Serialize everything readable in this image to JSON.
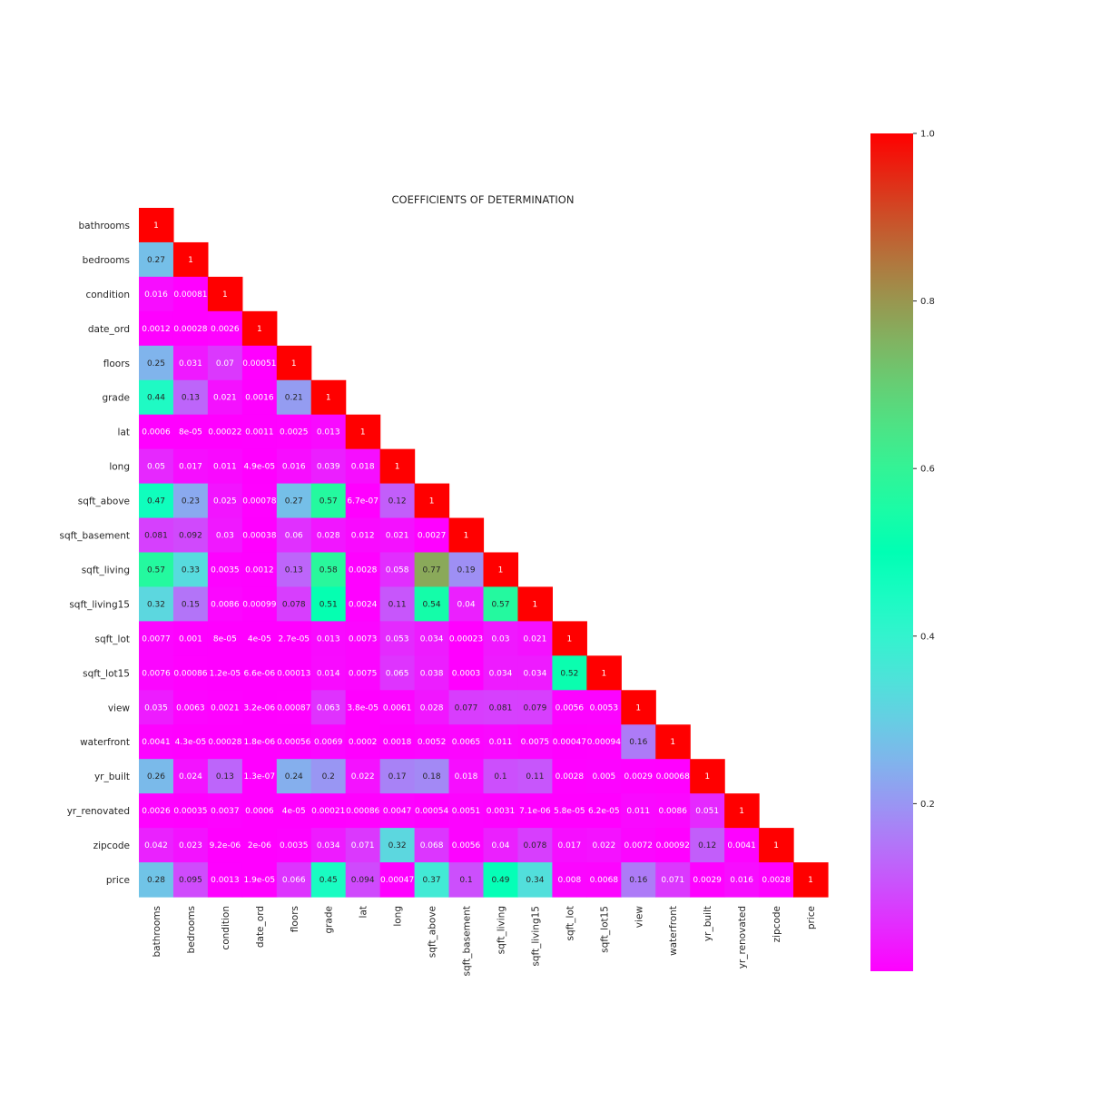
{
  "chart_data": {
    "type": "heatmap",
    "title": "COEFFICIENTS OF DETERMINATION",
    "colormap": "rainbow",
    "mask": "lower-triangle",
    "variables": [
      "bathrooms",
      "bedrooms",
      "condition",
      "date_ord",
      "floors",
      "grade",
      "lat",
      "long",
      "sqft_above",
      "sqft_basement",
      "sqft_living",
      "sqft_living15",
      "sqft_lot",
      "sqft_lot15",
      "view",
      "waterfront",
      "yr_built",
      "yr_renovated",
      "zipcode",
      "price"
    ],
    "rows": [
      [
        "1"
      ],
      [
        "0.27",
        "1"
      ],
      [
        "0.016",
        "0.00081",
        "1"
      ],
      [
        "0.0012",
        "0.00028",
        "0.0026",
        "1"
      ],
      [
        "0.25",
        "0.031",
        "0.07",
        "0.00051",
        "1"
      ],
      [
        "0.44",
        "0.13",
        "0.021",
        "0.0016",
        "0.21",
        "1"
      ],
      [
        "0.0006",
        "8e-05",
        "0.00022",
        "0.0011",
        "0.0025",
        "0.013",
        "1"
      ],
      [
        "0.05",
        "0.017",
        "0.011",
        "4.9e-05",
        "0.016",
        "0.039",
        "0.018",
        "1"
      ],
      [
        "0.47",
        "0.23",
        "0.025",
        "0.00078",
        "0.27",
        "0.57",
        "6.7e-07",
        "0.12",
        "1"
      ],
      [
        "0.081",
        "0.092",
        "0.03",
        "0.00038",
        "0.06",
        "0.028",
        "0.012",
        "0.021",
        "0.0027",
        "1"
      ],
      [
        "0.57",
        "0.33",
        "0.0035",
        "0.0012",
        "0.13",
        "0.58",
        "0.0028",
        "0.058",
        "0.77",
        "0.19",
        "1"
      ],
      [
        "0.32",
        "0.15",
        "0.0086",
        "0.00099",
        "0.078",
        "0.51",
        "0.0024",
        "0.11",
        "0.54",
        "0.04",
        "0.57",
        "1"
      ],
      [
        "0.0077",
        "0.001",
        "8e-05",
        "4e-05",
        "2.7e-05",
        "0.013",
        "0.0073",
        "0.053",
        "0.034",
        "0.00023",
        "0.03",
        "0.021",
        "1"
      ],
      [
        "0.0076",
        "0.00086",
        "1.2e-05",
        "6.6e-06",
        "0.00013",
        "0.014",
        "0.0075",
        "0.065",
        "0.038",
        "0.0003",
        "0.034",
        "0.034",
        "0.52",
        "1"
      ],
      [
        "0.035",
        "0.0063",
        "0.0021",
        "3.2e-06",
        "0.00087",
        "0.063",
        "3.8e-05",
        "0.0061",
        "0.028",
        "0.077",
        "0.081",
        "0.079",
        "0.0056",
        "0.0053",
        "1"
      ],
      [
        "0.0041",
        "4.3e-05",
        "0.00028",
        "1.8e-06",
        "0.00056",
        "0.0069",
        "0.0002",
        "0.0018",
        "0.0052",
        "0.0065",
        "0.011",
        "0.0075",
        "0.00047",
        "0.00094",
        "0.16",
        "1"
      ],
      [
        "0.26",
        "0.024",
        "0.13",
        "1.3e-07",
        "0.24",
        "0.2",
        "0.022",
        "0.17",
        "0.18",
        "0.018",
        "0.1",
        "0.11",
        "0.0028",
        "0.005",
        "0.0029",
        "0.00068",
        "1"
      ],
      [
        "0.0026",
        "0.00035",
        "0.0037",
        "0.0006",
        "4e-05",
        "0.00021",
        "0.00086",
        "0.0047",
        "0.00054",
        "0.0051",
        "0.0031",
        "7.1e-06",
        "5.8e-05",
        "6.2e-05",
        "0.011",
        "0.0086",
        "0.051",
        "1"
      ],
      [
        "0.042",
        "0.023",
        "9.2e-06",
        "2e-06",
        "0.0035",
        "0.034",
        "0.071",
        "0.32",
        "0.068",
        "0.0056",
        "0.04",
        "0.078",
        "0.017",
        "0.022",
        "0.0072",
        "0.00092",
        "0.12",
        "0.0041",
        "1"
      ],
      [
        "0.28",
        "0.095",
        "0.0013",
        "1.9e-05",
        "0.066",
        "0.45",
        "0.094",
        "0.00047",
        "0.37",
        "0.1",
        "0.49",
        "0.34",
        "0.008",
        "0.0068",
        "0.16",
        "0.071",
        "0.0029",
        "0.016",
        "0.0028",
        "1"
      ]
    ],
    "colorbar": {
      "range": [
        0,
        1
      ],
      "ticks": [
        0.2,
        0.4,
        0.6,
        0.8,
        1.0
      ],
      "tick_labels": [
        "0.2",
        "0.4",
        "0.6",
        "0.8",
        "1.0"
      ]
    }
  }
}
